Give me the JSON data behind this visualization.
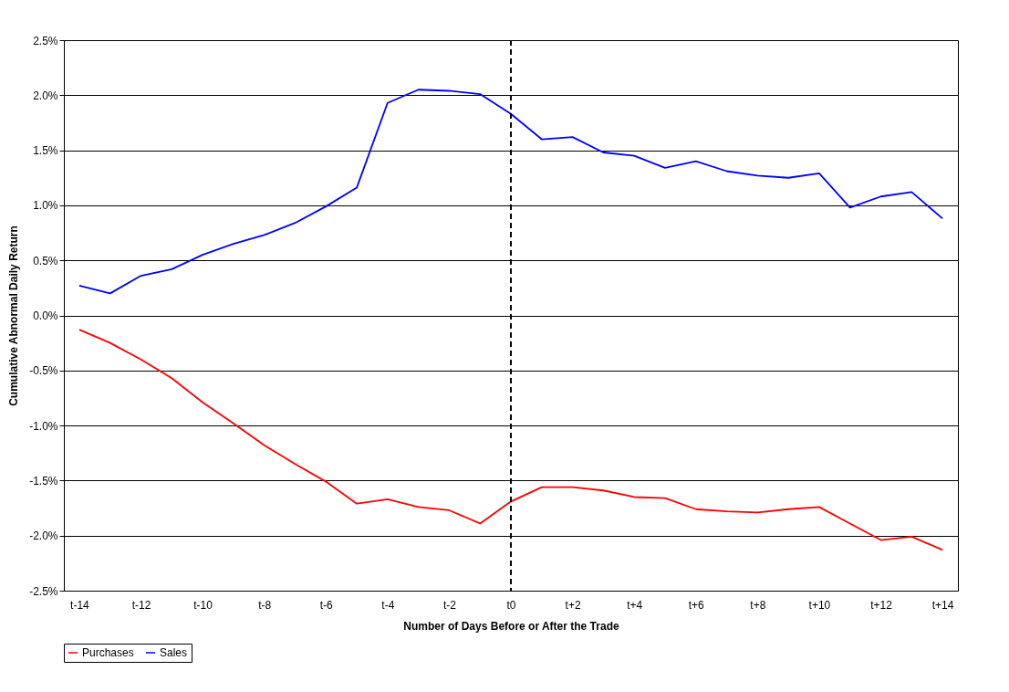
{
  "chart_data": {
    "type": "line",
    "xlabel": "Number of Days Before or After the Trade",
    "ylabel": "Cumulative Abnormal Daily Return",
    "categories": [
      "t-14",
      null,
      "t-12",
      null,
      "t-10",
      null,
      "t-8",
      null,
      "t-6",
      null,
      "t-4",
      null,
      "t-2",
      null,
      "t0",
      null,
      "t+2",
      null,
      "t+4",
      null,
      "t+6",
      null,
      "t+8",
      null,
      "t+10",
      null,
      "t+12",
      null,
      "t+14"
    ],
    "series": [
      {
        "name": "Purchases",
        "color": "#ff0000",
        "values": [
          -0.13,
          -0.25,
          -0.4,
          -0.57,
          -0.79,
          -0.98,
          -1.18,
          -1.35,
          -1.51,
          -1.71,
          -1.67,
          -1.74,
          -1.77,
          -1.89,
          -1.69,
          -1.56,
          -1.56,
          -1.59,
          -1.65,
          -1.66,
          -1.76,
          -1.78,
          -1.79,
          -1.76,
          -1.74,
          -1.89,
          -2.04,
          -2.01,
          -2.13
        ]
      },
      {
        "name": "Sales",
        "color": "#0000ff",
        "values": [
          0.27,
          0.2,
          0.36,
          0.42,
          0.55,
          0.65,
          0.73,
          0.84,
          0.99,
          1.16,
          1.93,
          2.05,
          2.04,
          2.01,
          1.83,
          1.6,
          1.62,
          1.48,
          1.45,
          1.34,
          1.4,
          1.31,
          1.27,
          1.25,
          1.29,
          0.98,
          1.08,
          1.12,
          0.88
        ]
      }
    ],
    "ylim": [
      -2.5,
      2.5
    ],
    "yticks": [
      {
        "value": -2.5,
        "label": "-2.5%"
      },
      {
        "value": -2,
        "label": "-2.0%"
      },
      {
        "value": -1.5,
        "label": "-1.5%"
      },
      {
        "value": -1,
        "label": "-1.0%"
      },
      {
        "value": -0.5,
        "label": "-0.5%"
      },
      {
        "value": 0,
        "label": "0.0%"
      },
      {
        "value": 0.5,
        "label": "0.5%"
      },
      {
        "value": 1,
        "label": "1.0%"
      },
      {
        "value": 1.5,
        "label": "1.5%"
      },
      {
        "value": 2,
        "label": "2.0%"
      },
      {
        "value": 2.5,
        "label": "2.5%"
      }
    ],
    "ref_lines": [
      {
        "axis": "x",
        "value": "t0",
        "color": "#000000",
        "line_style": "dashed"
      }
    ],
    "grid": "y",
    "legend": "bottom",
    "marker": "none",
    "line_style": "solid"
  }
}
